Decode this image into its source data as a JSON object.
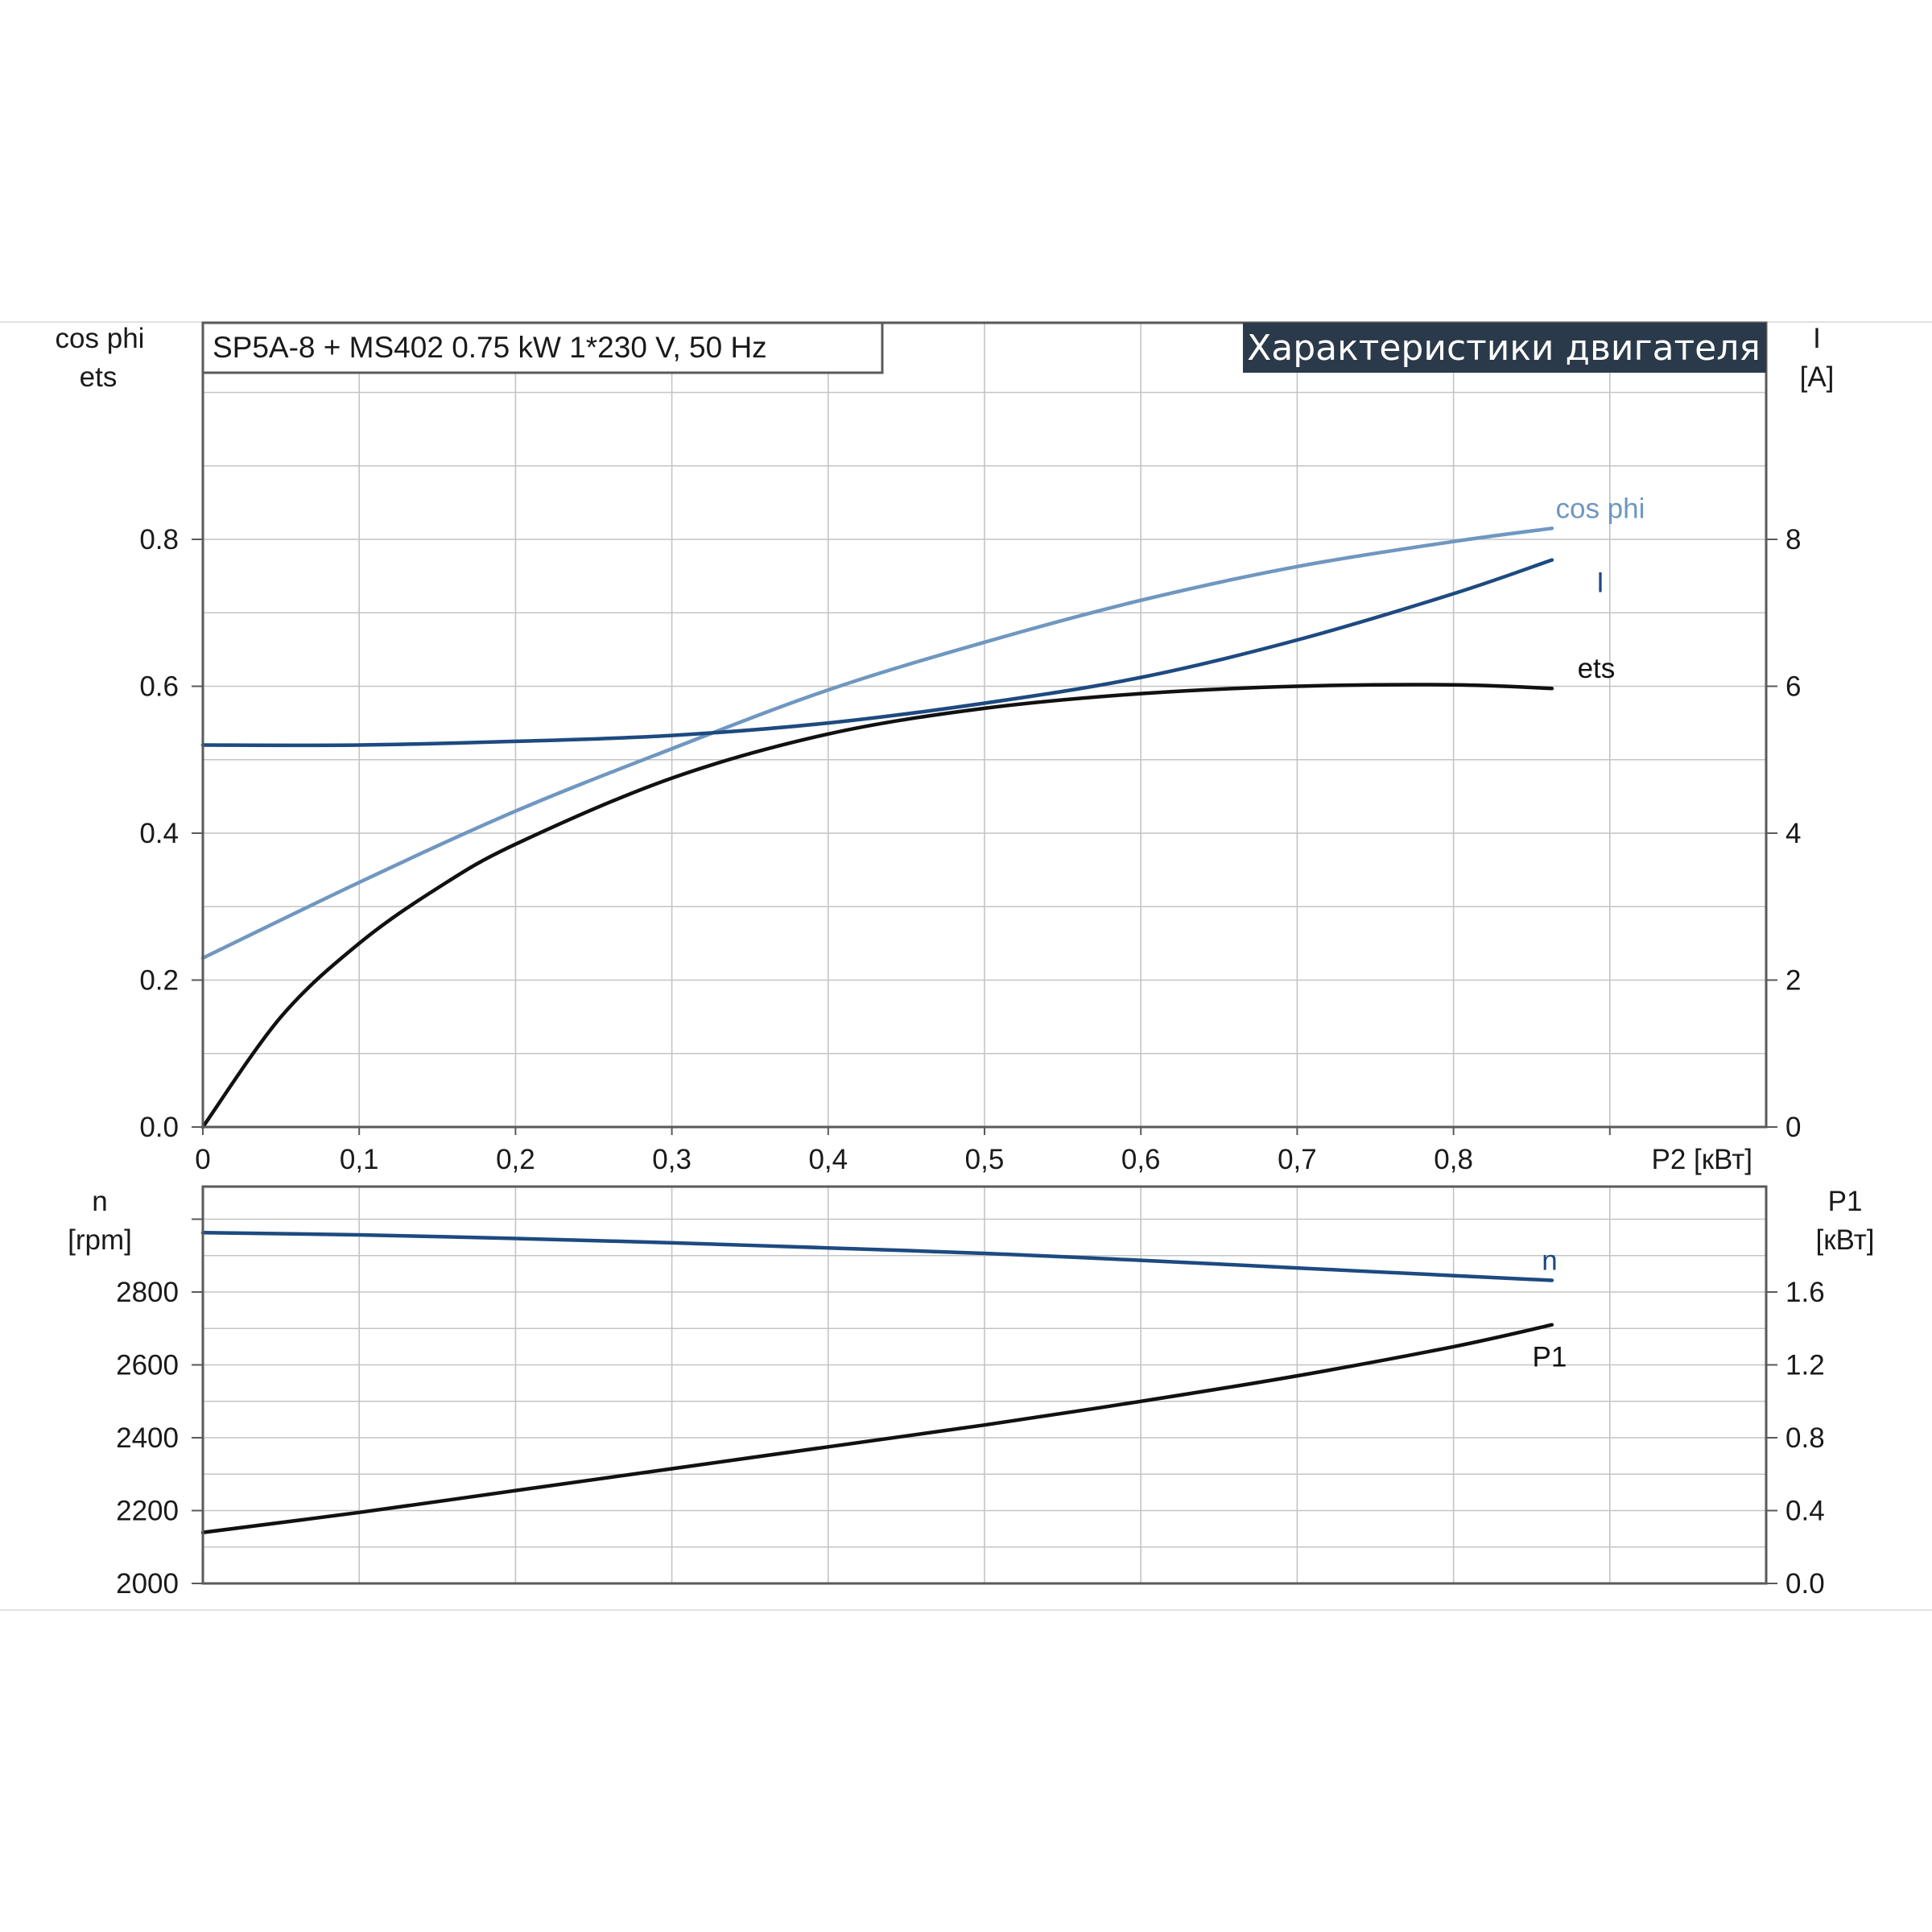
{
  "chart_data": [
    {
      "type": "line",
      "title": "SP5A-8 + MS402   0.75 kW   1*230 V, 50 Hz",
      "header": "Характеристики двигателя",
      "xlabel": "P2 [кВт]",
      "xlim": [
        0,
        1.0
      ],
      "x_ticks": [
        "0",
        "0,1",
        "0,2",
        "0,3",
        "0,4",
        "0,5",
        "0,6",
        "0,7",
        "0,8"
      ],
      "ylabel_left": [
        "cos phi",
        "ets"
      ],
      "ylim_left": [
        0,
        0.8
      ],
      "y_ticks_left": [
        "0.0",
        "0.2",
        "0.4",
        "0.6",
        "0.8"
      ],
      "ylabel_right": [
        "I",
        "[A]"
      ],
      "ylim_right": [
        0,
        8
      ],
      "y_ticks_right": [
        "0",
        "2",
        "4",
        "6",
        "8"
      ],
      "grid": true,
      "series": [
        {
          "name": "cos phi",
          "axis": "left",
          "color": "#6f97c0",
          "x": [
            0,
            0.1,
            0.2,
            0.3,
            0.4,
            0.5,
            0.6,
            0.7,
            0.8,
            0.863
          ],
          "y": [
            0.23,
            0.333,
            0.43,
            0.515,
            0.595,
            0.66,
            0.717,
            0.763,
            0.797,
            0.815
          ]
        },
        {
          "name": "I",
          "axis": "right",
          "color": "#1d4a80",
          "x": [
            0,
            0.1,
            0.2,
            0.3,
            0.4,
            0.5,
            0.6,
            0.7,
            0.8,
            0.863
          ],
          "y": [
            5.2,
            5.2,
            5.25,
            5.33,
            5.5,
            5.77,
            6.12,
            6.63,
            7.26,
            7.72
          ]
        },
        {
          "name": "ets",
          "axis": "left",
          "color": "#111111",
          "x": [
            0,
            0.05,
            0.1,
            0.15,
            0.2,
            0.3,
            0.4,
            0.5,
            0.6,
            0.7,
            0.8,
            0.863
          ],
          "y": [
            0,
            0.15,
            0.25,
            0.325,
            0.385,
            0.475,
            0.535,
            0.57,
            0.59,
            0.6,
            0.602,
            0.597
          ]
        }
      ]
    },
    {
      "type": "line",
      "xlim": [
        0,
        1.0
      ],
      "ylabel_left": [
        "n",
        "[rpm]"
      ],
      "ylim_left": [
        2000,
        3000
      ],
      "y_ticks_left": [
        "2000",
        "2200",
        "2400",
        "2600",
        "2800"
      ],
      "ylabel_right": [
        "P1",
        "[кВт]"
      ],
      "ylim_right": [
        0,
        2.0
      ],
      "y_ticks_right": [
        "0.0",
        "0.4",
        "0.8",
        "1.2",
        "1.6"
      ],
      "grid": true,
      "series": [
        {
          "name": "n",
          "axis": "left",
          "color": "#1d4a80",
          "x": [
            0,
            0.1,
            0.2,
            0.3,
            0.4,
            0.5,
            0.6,
            0.7,
            0.8,
            0.863
          ],
          "y": [
            2963,
            2957,
            2947,
            2935,
            2921,
            2906,
            2887,
            2866,
            2845,
            2832
          ]
        },
        {
          "name": "P1",
          "axis": "right",
          "color": "#111111",
          "x": [
            0,
            0.1,
            0.2,
            0.3,
            0.4,
            0.5,
            0.6,
            0.7,
            0.8,
            0.863
          ],
          "y": [
            0.28,
            0.39,
            0.51,
            0.63,
            0.75,
            0.87,
            1.0,
            1.14,
            1.3,
            1.42
          ]
        }
      ]
    }
  ]
}
